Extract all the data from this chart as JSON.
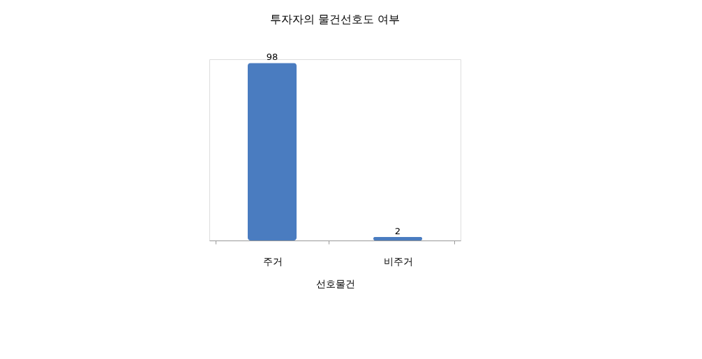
{
  "chart_data": {
    "type": "bar",
    "title": "투자자의 물건선호도 여부",
    "xlabel": "선호물건",
    "categories": [
      "주거",
      "비주거"
    ],
    "values": [
      98,
      2
    ],
    "color": "#4a7cc0",
    "data_labels": true
  }
}
